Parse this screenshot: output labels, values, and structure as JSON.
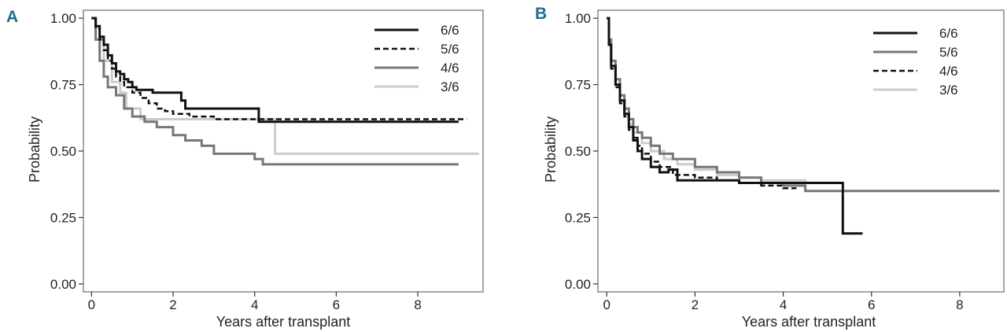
{
  "colors": {
    "panel_label": "#1b6f8e",
    "axis": "#333333",
    "frame": "#888888"
  },
  "chart_data": [
    {
      "type": "line",
      "panel_label": "A",
      "title": "",
      "xlabel": "Years after transplant",
      "ylabel": "Probability",
      "xlim": [
        -0.2,
        9.6
      ],
      "ylim": [
        -0.03,
        1.03
      ],
      "xticks": [
        0,
        2,
        4,
        6,
        8
      ],
      "xtick_labels": [
        "0",
        "2",
        "4",
        "6",
        "8"
      ],
      "yticks": [
        0,
        0.25,
        0.5,
        0.75,
        1.0
      ],
      "ytick_labels": [
        "0.00",
        "0.25",
        "0.50",
        "0.75",
        "1.00"
      ],
      "legend_position": "top-right",
      "series": [
        {
          "name": "6/6",
          "color": "#111111",
          "dash": "",
          "width": 3,
          "x": [
            0,
            0.1,
            0.2,
            0.3,
            0.4,
            0.5,
            0.6,
            0.7,
            0.8,
            0.9,
            1.0,
            1.1,
            1.2,
            1.5,
            2.2,
            2.3,
            3.0,
            4.1,
            5.0,
            9.0
          ],
          "y": [
            1.0,
            0.97,
            0.93,
            0.9,
            0.86,
            0.83,
            0.8,
            0.79,
            0.77,
            0.76,
            0.74,
            0.73,
            0.73,
            0.72,
            0.69,
            0.66,
            0.66,
            0.61,
            0.61,
            0.61
          ]
        },
        {
          "name": "5/6",
          "color": "#111111",
          "dash": "7,4",
          "width": 2.5,
          "x": [
            0,
            0.1,
            0.2,
            0.3,
            0.4,
            0.5,
            0.6,
            0.7,
            0.8,
            1.0,
            1.2,
            1.4,
            1.6,
            1.8,
            2.0,
            2.4,
            3.0,
            4.0,
            5.0,
            9.2
          ],
          "y": [
            1.0,
            0.96,
            0.92,
            0.88,
            0.84,
            0.81,
            0.78,
            0.76,
            0.74,
            0.72,
            0.7,
            0.68,
            0.66,
            0.65,
            0.64,
            0.63,
            0.62,
            0.62,
            0.62,
            0.62
          ]
        },
        {
          "name": "4/6",
          "color": "#777777",
          "dash": "",
          "width": 3,
          "x": [
            0,
            0.1,
            0.2,
            0.3,
            0.4,
            0.6,
            0.8,
            1.0,
            1.3,
            1.6,
            2.0,
            2.3,
            2.7,
            3.0,
            3.5,
            4.0,
            4.2,
            4.5,
            6.0,
            9.0
          ],
          "y": [
            1.0,
            0.92,
            0.84,
            0.78,
            0.74,
            0.71,
            0.66,
            0.63,
            0.61,
            0.59,
            0.56,
            0.54,
            0.52,
            0.49,
            0.49,
            0.47,
            0.45,
            0.45,
            0.45,
            0.45
          ]
        },
        {
          "name": "3/6",
          "color": "#cccccc",
          "dash": "",
          "width": 3,
          "x": [
            0,
            0.1,
            0.3,
            0.5,
            0.7,
            0.85,
            1.0,
            1.2,
            1.4,
            2.0,
            3.0,
            4.0,
            4.5,
            5.0,
            9.5
          ],
          "y": [
            1.0,
            0.92,
            0.84,
            0.76,
            0.72,
            0.66,
            0.66,
            0.62,
            0.62,
            0.62,
            0.62,
            0.62,
            0.49,
            0.49,
            0.49
          ]
        }
      ]
    },
    {
      "type": "line",
      "panel_label": "B",
      "title": "",
      "xlabel": "Years after transplant",
      "ylabel": "Probability",
      "xlim": [
        -0.2,
        9.0
      ],
      "ylim": [
        -0.03,
        1.03
      ],
      "xticks": [
        0,
        2,
        4,
        6,
        8
      ],
      "xtick_labels": [
        "0",
        "2",
        "4",
        "6",
        "8"
      ],
      "yticks": [
        0,
        0.25,
        0.5,
        0.75,
        1.0
      ],
      "ytick_labels": [
        "0.00",
        "0.25",
        "0.50",
        "0.75",
        "1.00"
      ],
      "legend_position": "top-right",
      "series": [
        {
          "name": "6/6",
          "color": "#111111",
          "dash": "",
          "width": 3,
          "x": [
            0,
            0.05,
            0.1,
            0.2,
            0.3,
            0.4,
            0.5,
            0.6,
            0.7,
            0.8,
            1.0,
            1.2,
            1.4,
            1.6,
            2.0,
            3.0,
            4.0,
            5.3,
            5.35,
            5.8
          ],
          "y": [
            1.0,
            0.9,
            0.82,
            0.75,
            0.69,
            0.64,
            0.59,
            0.54,
            0.5,
            0.47,
            0.44,
            0.42,
            0.43,
            0.39,
            0.39,
            0.38,
            0.38,
            0.38,
            0.19,
            0.19
          ]
        },
        {
          "name": "5/6",
          "color": "#777777",
          "dash": "",
          "width": 3,
          "x": [
            0,
            0.05,
            0.1,
            0.2,
            0.3,
            0.4,
            0.5,
            0.6,
            0.7,
            0.8,
            1.0,
            1.2,
            1.5,
            2.0,
            2.5,
            3.0,
            3.5,
            4.0,
            4.5,
            6.0,
            8.9
          ],
          "y": [
            1.0,
            0.92,
            0.84,
            0.77,
            0.71,
            0.66,
            0.62,
            0.59,
            0.57,
            0.55,
            0.52,
            0.49,
            0.47,
            0.44,
            0.42,
            0.4,
            0.38,
            0.37,
            0.35,
            0.35,
            0.35
          ]
        },
        {
          "name": "4/6",
          "color": "#111111",
          "dash": "7,4",
          "width": 2.5,
          "x": [
            0,
            0.05,
            0.1,
            0.2,
            0.3,
            0.4,
            0.5,
            0.6,
            0.7,
            0.8,
            1.0,
            1.2,
            1.5,
            2.0,
            2.5,
            3.0,
            3.5,
            4.0,
            4.3
          ],
          "y": [
            1.0,
            0.9,
            0.81,
            0.74,
            0.68,
            0.63,
            0.58,
            0.55,
            0.52,
            0.49,
            0.46,
            0.44,
            0.41,
            0.4,
            0.39,
            0.38,
            0.37,
            0.36,
            0.36
          ]
        },
        {
          "name": "3/6",
          "color": "#cccccc",
          "dash": "",
          "width": 3,
          "x": [
            0,
            0.05,
            0.1,
            0.2,
            0.3,
            0.4,
            0.5,
            0.6,
            0.8,
            1.0,
            1.3,
            1.6,
            2.0,
            2.5,
            3.0,
            3.5,
            4.0,
            4.5
          ],
          "y": [
            1.0,
            0.9,
            0.82,
            0.75,
            0.69,
            0.64,
            0.6,
            0.57,
            0.53,
            0.5,
            0.47,
            0.45,
            0.43,
            0.41,
            0.4,
            0.39,
            0.39,
            0.38
          ]
        }
      ]
    }
  ]
}
